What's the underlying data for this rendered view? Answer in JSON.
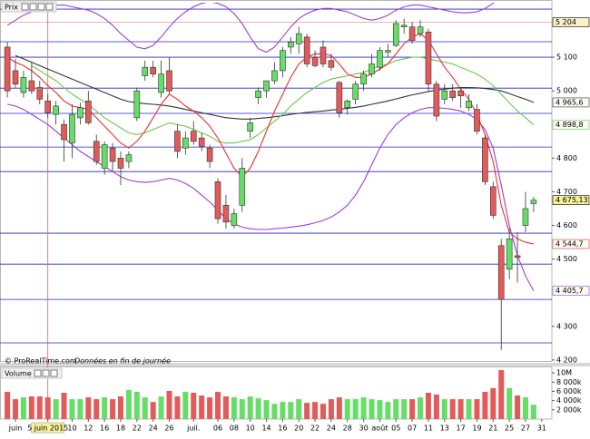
{
  "chart_data": [
    {
      "type": "candlestick",
      "title": "Prix",
      "source": "© ProRealTime.com",
      "note": "Données en fin de journée",
      "ylim": [
        4197,
        5262
      ],
      "yticks": [
        {
          "value": 4200,
          "label": "4 200"
        },
        {
          "value": 4300,
          "label": "4 300"
        },
        {
          "value": 4500,
          "label": "4 500"
        },
        {
          "value": 4600,
          "label": "4 600"
        },
        {
          "value": 4700,
          "label": "4 700"
        },
        {
          "value": 4800,
          "label": "4 800"
        },
        {
          "value": 5000,
          "label": "5 000"
        },
        {
          "value": 5100,
          "label": "5 100"
        }
      ],
      "up_color": "#66dd66",
      "down_color": "#e25a5a",
      "open": [
        5130,
        5060,
        4995,
        5030,
        5010,
        4970,
        4930,
        4900,
        4845,
        4920,
        4970,
        4850,
        4770,
        4830,
        4800,
        4790,
        4920,
        5045,
        5070,
        4995,
        5060,
        4880,
        4830,
        4880,
        4860,
        4830,
        4730,
        4660,
        4600,
        4660,
        4880,
        4980,
        5000,
        5030,
        5060,
        5130,
        5140,
        5160,
        5100,
        5130,
        5090,
        5025,
        4950,
        4975,
        5020,
        5050,
        5070,
        5115,
        5135,
        5190,
        5190,
        5170,
        5175,
        5020,
        4975,
        5000,
        5000,
        4950,
        4945,
        4860,
        4715,
        4540,
        4470,
        4510,
        4600,
        4665,
        null
      ],
      "high": [
        5145,
        5095,
        5060,
        5085,
        5030,
        4990,
        4970,
        4915,
        4960,
        4965,
        5000,
        4870,
        4850,
        4845,
        4820,
        4820,
        5010,
        5090,
        5090,
        5090,
        5100,
        4900,
        4880,
        4910,
        4875,
        4840,
        4740,
        4690,
        4650,
        4800,
        4920,
        5010,
        5030,
        5085,
        5130,
        5160,
        5190,
        5170,
        5120,
        5150,
        5110,
        5030,
        4975,
        5030,
        5060,
        5110,
        5130,
        5140,
        5210,
        5215,
        5205,
        5210,
        5185,
        5030,
        5020,
        5020,
        5010,
        4990,
        4960,
        4870,
        4730,
        4560,
        4590,
        4580,
        4700,
        4685,
        null
      ],
      "low": [
        4980,
        5010,
        4980,
        4990,
        4960,
        4920,
        4900,
        4790,
        4800,
        4900,
        4900,
        4780,
        4750,
        4760,
        4720,
        4770,
        4910,
        5030,
        5040,
        4980,
        4990,
        4800,
        4810,
        4840,
        4820,
        4770,
        4605,
        4590,
        4590,
        4640,
        4860,
        4960,
        4980,
        5020,
        5040,
        5110,
        5110,
        5070,
        5070,
        5070,
        5060,
        4920,
        4930,
        4960,
        5000,
        5040,
        5060,
        5100,
        5130,
        5170,
        5140,
        5160,
        5000,
        4910,
        4960,
        4970,
        4950,
        4940,
        4870,
        4720,
        4620,
        4230,
        4440,
        4430,
        4580,
        4640,
        null
      ],
      "close": [
        5000,
        5020,
        5040,
        5000,
        4975,
        4935,
        4955,
        4855,
        4930,
        4950,
        4905,
        4790,
        4840,
        4790,
        4770,
        4810,
        5000,
        5070,
        5050,
        5050,
        5000,
        4820,
        4860,
        4850,
        4835,
        4790,
        4620,
        4610,
        4635,
        4770,
        4905,
        5000,
        5030,
        5060,
        5120,
        5145,
        5170,
        5080,
        5075,
        5080,
        5070,
        4935,
        4970,
        5020,
        5050,
        5080,
        5120,
        5120,
        5200,
        5195,
        5150,
        5190,
        5020,
        4925,
        5000,
        4980,
        4985,
        4970,
        4880,
        4730,
        4630,
        4380,
        4560,
        4505,
        4650,
        4675.13,
        null
      ],
      "last_close_label": "4 675,13",
      "overlays": [
        {
          "color": "#9b3fd1",
          "values": [
            5195,
            5210,
            5225,
            5235,
            5245,
            5250,
            5255,
            5255,
            5250,
            5245,
            5240,
            5230,
            5215,
            5195,
            5170,
            5150,
            5130,
            5125,
            5135,
            5160,
            5190,
            5215,
            5235,
            5250,
            5260,
            5265,
            5260,
            5250,
            5230,
            5200,
            5160,
            5125,
            5115,
            5130,
            5160,
            5190,
            5215,
            5230,
            5240,
            5245,
            5245,
            5240,
            5235,
            5225,
            5215,
            5210,
            5215,
            5225,
            5240,
            5250,
            5255,
            5255,
            5250,
            5245,
            5240,
            5235,
            5232,
            5232,
            5235,
            5245,
            5260,
            5290,
            5320,
            5340,
            5355,
            5370,
            null
          ]
        },
        {
          "color": "#9b3fd1",
          "last_label": "4 405,7",
          "values": [
            4960,
            4955,
            4945,
            4930,
            4915,
            4900,
            4880,
            4860,
            4840,
            4820,
            4805,
            4790,
            4775,
            4760,
            4745,
            4735,
            4730,
            4728,
            4730,
            4735,
            4740,
            4735,
            4725,
            4710,
            4690,
            4670,
            4645,
            4620,
            4605,
            4595,
            4590,
            4588,
            4588,
            4590,
            4592,
            4595,
            4598,
            4602,
            4608,
            4615,
            4625,
            4640,
            4660,
            4690,
            4730,
            4780,
            4830,
            4870,
            4900,
            4920,
            4935,
            4945,
            4950,
            4950,
            4948,
            4945,
            4940,
            4930,
            4915,
            4885,
            4830,
            4720,
            4600,
            4510,
            4450,
            4405.7,
            null
          ]
        },
        {
          "color": "#333333",
          "last_label": "4 965,6",
          "values": [
            null,
            5105,
            5095,
            5085,
            5075,
            5065,
            5055,
            5045,
            5035,
            5025,
            5015,
            5005,
            4995,
            4985,
            4975,
            4968,
            4965,
            4962,
            4960,
            4958,
            4955,
            4950,
            4945,
            4940,
            4935,
            4930,
            4925,
            4920,
            4918,
            4916,
            4916,
            4918,
            4920,
            4923,
            4926,
            4930,
            4933,
            4936,
            4938,
            4940,
            4943,
            4945,
            4948,
            4951,
            4955,
            4960,
            4965,
            4970,
            4976,
            4982,
            4988,
            4993,
            4998,
            5002,
            5005,
            5008,
            5010,
            5010,
            5009,
            5007,
            5004,
            5000,
            4992,
            4983,
            4975,
            4965.6,
            null
          ]
        },
        {
          "color": "#6cc94a",
          "last_label": "4 898,8",
          "values": [
            null,
            null,
            null,
            5075,
            5060,
            5045,
            5030,
            5010,
            4990,
            4975,
            4960,
            4940,
            4920,
            4905,
            4890,
            4875,
            4870,
            4875,
            4885,
            4895,
            4905,
            4900,
            4895,
            4885,
            4875,
            4865,
            4850,
            4845,
            4845,
            4850,
            4855,
            4870,
            4890,
            4910,
            4930,
            4955,
            4975,
            4995,
            5010,
            5025,
            5035,
            5040,
            5045,
            5050,
            5055,
            5065,
            5075,
            5080,
            5090,
            5095,
            5100,
            5100,
            5095,
            5090,
            5085,
            5080,
            5070,
            5060,
            5050,
            5035,
            5015,
            4990,
            4965,
            4940,
            4920,
            4898.8,
            null
          ]
        },
        {
          "color": "#e8312f",
          "last_label": "4 544,7",
          "values": [
            5100,
            5085,
            5075,
            5060,
            5040,
            5015,
            4995,
            4970,
            4955,
            4950,
            4945,
            4920,
            4895,
            4870,
            4845,
            4830,
            4850,
            4880,
            4920,
            4960,
            4990,
            4975,
            4955,
            4940,
            4920,
            4895,
            4860,
            4815,
            4770,
            4745,
            4770,
            4820,
            4880,
            4940,
            4990,
            5040,
            5080,
            5100,
            5110,
            5110,
            5105,
            5080,
            5050,
            5040,
            5040,
            5050,
            5065,
            5080,
            5110,
            5140,
            5160,
            5170,
            5150,
            5110,
            5070,
            5040,
            5005,
            4975,
            4930,
            4870,
            4790,
            4660,
            4580,
            4560,
            4550,
            4544.7,
            null
          ]
        }
      ],
      "horizontal_lines": [
        5243,
        5146,
        5100,
        5008,
        4933,
        4833,
        4760,
        4577,
        4485,
        4380,
        4251
      ],
      "horizontal_line_color": "#2626c8",
      "reference_line": {
        "value": 5204,
        "label": "5 204",
        "color": "#e49a9a"
      }
    },
    {
      "type": "bar",
      "title": "Volume",
      "categories": [
        null,
        "juin",
        null,
        null,
        null,
        "5 juin 2015",
        null,
        null,
        "10",
        null,
        "12",
        null,
        "16",
        null,
        "18",
        null,
        "22",
        null,
        "24",
        null,
        "26",
        null,
        null,
        "juil.",
        null,
        null,
        "06",
        null,
        "08",
        null,
        "10",
        null,
        "14",
        null,
        "16",
        null,
        "20",
        null,
        "22",
        null,
        "24",
        null,
        "28",
        null,
        "30",
        null,
        "août",
        null,
        "05",
        null,
        "07",
        null,
        "11",
        null,
        "13",
        null,
        "17",
        null,
        "19",
        null,
        "21",
        null,
        "25",
        null,
        "27",
        null,
        "31"
      ],
      "cursor_category": 5,
      "values": [
        5900000,
        4300000,
        4700000,
        4900000,
        4900000,
        4700000,
        4300000,
        5700000,
        4300000,
        4300000,
        4700000,
        4300000,
        4700000,
        4300000,
        4900000,
        6300000,
        5900000,
        4700000,
        3700000,
        4900000,
        6100000,
        4900000,
        5900000,
        5700000,
        5100000,
        4700000,
        5900000,
        4900000,
        4700000,
        4300000,
        4900000,
        4500000,
        4100000,
        3300000,
        3700000,
        3700000,
        4300000,
        3500000,
        3700000,
        3300000,
        4300000,
        4700000,
        4300000,
        4300000,
        4700000,
        4300000,
        4100000,
        3700000,
        4300000,
        4300000,
        4300000,
        4700000,
        5700000,
        5300000,
        4300000,
        4300000,
        4300000,
        4300000,
        4300000,
        5900000,
        6700000,
        10600000,
        6700000,
        5100000,
        4700000,
        3100000,
        null
      ],
      "ylim": [
        0,
        11200000
      ],
      "yticks": [
        {
          "value": 2000000,
          "label": "2 000k"
        },
        {
          "value": 4000000,
          "label": "4 000k"
        },
        {
          "value": 6000000,
          "label": "6 000k"
        },
        {
          "value": 8000000,
          "label": "8 000k"
        },
        {
          "value": 10000000,
          "label": "10M"
        }
      ]
    }
  ]
}
